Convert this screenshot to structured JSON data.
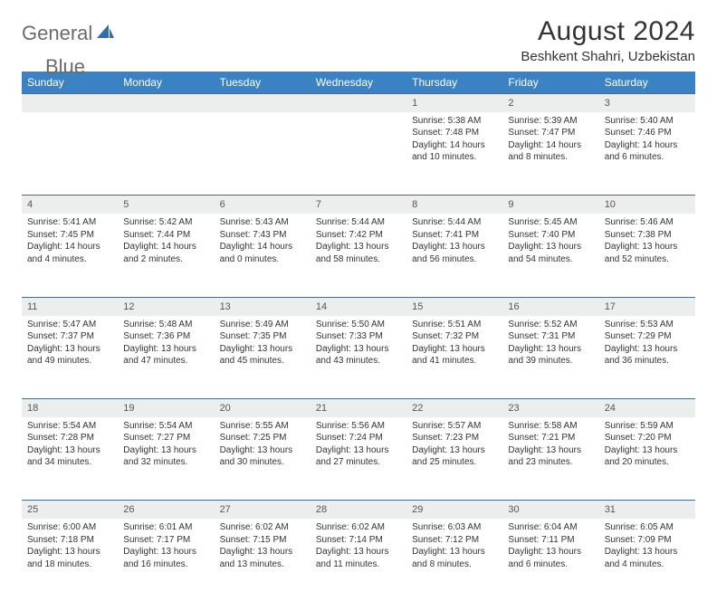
{
  "brand": {
    "word1": "General",
    "word2": "Blue"
  },
  "title": "August 2024",
  "location": "Beshkent Shahri, Uzbekistan",
  "colors": {
    "header_bg": "#3b82c4",
    "header_text": "#ffffff",
    "daynum_bg": "#eceded",
    "row_border": "#4a6a8a",
    "logo_gray": "#6b6b6b",
    "logo_blue": "#2f6fb0"
  },
  "weekdays": [
    "Sunday",
    "Monday",
    "Tuesday",
    "Wednesday",
    "Thursday",
    "Friday",
    "Saturday"
  ],
  "weeks": [
    {
      "nums": [
        "",
        "",
        "",
        "",
        "1",
        "2",
        "3"
      ],
      "cells": [
        null,
        null,
        null,
        null,
        {
          "sunrise": "Sunrise: 5:38 AM",
          "sunset": "Sunset: 7:48 PM",
          "day1": "Daylight: 14 hours",
          "day2": "and 10 minutes."
        },
        {
          "sunrise": "Sunrise: 5:39 AM",
          "sunset": "Sunset: 7:47 PM",
          "day1": "Daylight: 14 hours",
          "day2": "and 8 minutes."
        },
        {
          "sunrise": "Sunrise: 5:40 AM",
          "sunset": "Sunset: 7:46 PM",
          "day1": "Daylight: 14 hours",
          "day2": "and 6 minutes."
        }
      ]
    },
    {
      "nums": [
        "4",
        "5",
        "6",
        "7",
        "8",
        "9",
        "10"
      ],
      "cells": [
        {
          "sunrise": "Sunrise: 5:41 AM",
          "sunset": "Sunset: 7:45 PM",
          "day1": "Daylight: 14 hours",
          "day2": "and 4 minutes."
        },
        {
          "sunrise": "Sunrise: 5:42 AM",
          "sunset": "Sunset: 7:44 PM",
          "day1": "Daylight: 14 hours",
          "day2": "and 2 minutes."
        },
        {
          "sunrise": "Sunrise: 5:43 AM",
          "sunset": "Sunset: 7:43 PM",
          "day1": "Daylight: 14 hours",
          "day2": "and 0 minutes."
        },
        {
          "sunrise": "Sunrise: 5:44 AM",
          "sunset": "Sunset: 7:42 PM",
          "day1": "Daylight: 13 hours",
          "day2": "and 58 minutes."
        },
        {
          "sunrise": "Sunrise: 5:44 AM",
          "sunset": "Sunset: 7:41 PM",
          "day1": "Daylight: 13 hours",
          "day2": "and 56 minutes."
        },
        {
          "sunrise": "Sunrise: 5:45 AM",
          "sunset": "Sunset: 7:40 PM",
          "day1": "Daylight: 13 hours",
          "day2": "and 54 minutes."
        },
        {
          "sunrise": "Sunrise: 5:46 AM",
          "sunset": "Sunset: 7:38 PM",
          "day1": "Daylight: 13 hours",
          "day2": "and 52 minutes."
        }
      ]
    },
    {
      "nums": [
        "11",
        "12",
        "13",
        "14",
        "15",
        "16",
        "17"
      ],
      "cells": [
        {
          "sunrise": "Sunrise: 5:47 AM",
          "sunset": "Sunset: 7:37 PM",
          "day1": "Daylight: 13 hours",
          "day2": "and 49 minutes."
        },
        {
          "sunrise": "Sunrise: 5:48 AM",
          "sunset": "Sunset: 7:36 PM",
          "day1": "Daylight: 13 hours",
          "day2": "and 47 minutes."
        },
        {
          "sunrise": "Sunrise: 5:49 AM",
          "sunset": "Sunset: 7:35 PM",
          "day1": "Daylight: 13 hours",
          "day2": "and 45 minutes."
        },
        {
          "sunrise": "Sunrise: 5:50 AM",
          "sunset": "Sunset: 7:33 PM",
          "day1": "Daylight: 13 hours",
          "day2": "and 43 minutes."
        },
        {
          "sunrise": "Sunrise: 5:51 AM",
          "sunset": "Sunset: 7:32 PM",
          "day1": "Daylight: 13 hours",
          "day2": "and 41 minutes."
        },
        {
          "sunrise": "Sunrise: 5:52 AM",
          "sunset": "Sunset: 7:31 PM",
          "day1": "Daylight: 13 hours",
          "day2": "and 39 minutes."
        },
        {
          "sunrise": "Sunrise: 5:53 AM",
          "sunset": "Sunset: 7:29 PM",
          "day1": "Daylight: 13 hours",
          "day2": "and 36 minutes."
        }
      ]
    },
    {
      "nums": [
        "18",
        "19",
        "20",
        "21",
        "22",
        "23",
        "24"
      ],
      "cells": [
        {
          "sunrise": "Sunrise: 5:54 AM",
          "sunset": "Sunset: 7:28 PM",
          "day1": "Daylight: 13 hours",
          "day2": "and 34 minutes."
        },
        {
          "sunrise": "Sunrise: 5:54 AM",
          "sunset": "Sunset: 7:27 PM",
          "day1": "Daylight: 13 hours",
          "day2": "and 32 minutes."
        },
        {
          "sunrise": "Sunrise: 5:55 AM",
          "sunset": "Sunset: 7:25 PM",
          "day1": "Daylight: 13 hours",
          "day2": "and 30 minutes."
        },
        {
          "sunrise": "Sunrise: 5:56 AM",
          "sunset": "Sunset: 7:24 PM",
          "day1": "Daylight: 13 hours",
          "day2": "and 27 minutes."
        },
        {
          "sunrise": "Sunrise: 5:57 AM",
          "sunset": "Sunset: 7:23 PM",
          "day1": "Daylight: 13 hours",
          "day2": "and 25 minutes."
        },
        {
          "sunrise": "Sunrise: 5:58 AM",
          "sunset": "Sunset: 7:21 PM",
          "day1": "Daylight: 13 hours",
          "day2": "and 23 minutes."
        },
        {
          "sunrise": "Sunrise: 5:59 AM",
          "sunset": "Sunset: 7:20 PM",
          "day1": "Daylight: 13 hours",
          "day2": "and 20 minutes."
        }
      ]
    },
    {
      "nums": [
        "25",
        "26",
        "27",
        "28",
        "29",
        "30",
        "31"
      ],
      "cells": [
        {
          "sunrise": "Sunrise: 6:00 AM",
          "sunset": "Sunset: 7:18 PM",
          "day1": "Daylight: 13 hours",
          "day2": "and 18 minutes."
        },
        {
          "sunrise": "Sunrise: 6:01 AM",
          "sunset": "Sunset: 7:17 PM",
          "day1": "Daylight: 13 hours",
          "day2": "and 16 minutes."
        },
        {
          "sunrise": "Sunrise: 6:02 AM",
          "sunset": "Sunset: 7:15 PM",
          "day1": "Daylight: 13 hours",
          "day2": "and 13 minutes."
        },
        {
          "sunrise": "Sunrise: 6:02 AM",
          "sunset": "Sunset: 7:14 PM",
          "day1": "Daylight: 13 hours",
          "day2": "and 11 minutes."
        },
        {
          "sunrise": "Sunrise: 6:03 AM",
          "sunset": "Sunset: 7:12 PM",
          "day1": "Daylight: 13 hours",
          "day2": "and 8 minutes."
        },
        {
          "sunrise": "Sunrise: 6:04 AM",
          "sunset": "Sunset: 7:11 PM",
          "day1": "Daylight: 13 hours",
          "day2": "and 6 minutes."
        },
        {
          "sunrise": "Sunrise: 6:05 AM",
          "sunset": "Sunset: 7:09 PM",
          "day1": "Daylight: 13 hours",
          "day2": "and 4 minutes."
        }
      ]
    }
  ]
}
